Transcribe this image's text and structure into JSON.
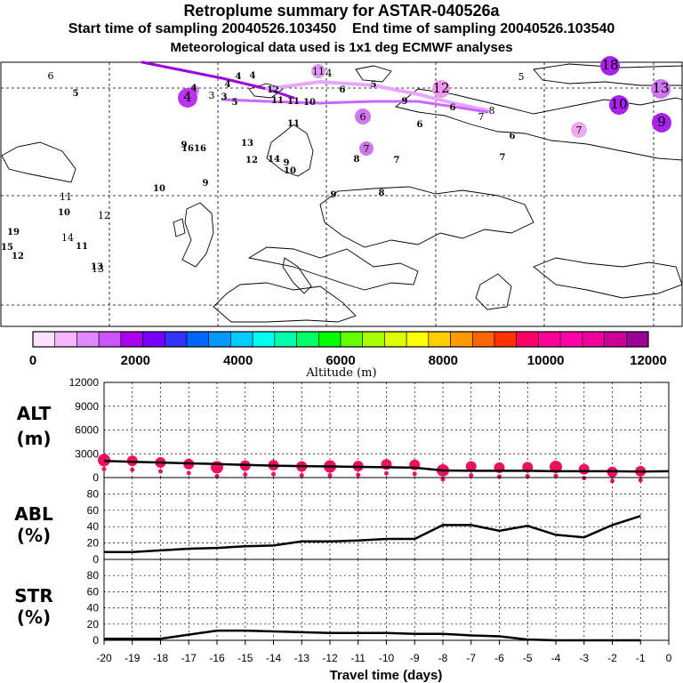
{
  "header": {
    "title": "Retroplume summary for ASTAR-040526a",
    "start_label": "Start time of sampling 20040526.103450",
    "end_label": "End time of sampling 20040526.103540",
    "met_label": "Meteorological data used is 1x1 deg ECMWF analyses"
  },
  "chart_data": [
    {
      "type": "map",
      "title": "Retroplume map",
      "cluster_labels": [
        {
          "label": "6",
          "color": "#ffffff"
        },
        {
          "label": "4",
          "color": "#cc88ee"
        },
        {
          "label": "3",
          "color": "#ffffff"
        },
        {
          "label": "11",
          "color": "#dd99ee"
        },
        {
          "label": "4",
          "color": "#ffffff"
        },
        {
          "label": "5",
          "color": "#ffffff"
        },
        {
          "label": "12",
          "color": "#ee99ee"
        },
        {
          "label": "18",
          "color": "#aa22ee"
        },
        {
          "label": "13",
          "color": "#cc77ee"
        },
        {
          "label": "10",
          "color": "#aa22ee"
        },
        {
          "label": "9",
          "color": "#aa22ee"
        },
        {
          "label": "8",
          "color": "#ffffff"
        },
        {
          "label": "7",
          "color": "#ffffff"
        },
        {
          "label": "6",
          "color": "#cc77ee"
        },
        {
          "label": "7",
          "color": "#eeaaee"
        },
        {
          "label": "4",
          "color": "#bb33ee"
        },
        {
          "label": "7",
          "color": "#cc77ee"
        },
        {
          "label": "11",
          "color": "#ffffff"
        },
        {
          "label": "12",
          "color": "#ffffff"
        },
        {
          "label": "13",
          "color": "#ffffff"
        },
        {
          "label": "14",
          "color": "#ffffff"
        }
      ]
    },
    {
      "type": "colorbar",
      "xlabel": "Altitude (m)",
      "tick_labels": [
        "0",
        "2000",
        "4000",
        "6000",
        "8000",
        "10000",
        "12000"
      ],
      "range": [
        0,
        12000
      ],
      "colors": [
        "#ffe0ff",
        "#f3b8ff",
        "#e089ff",
        "#cc55ff",
        "#aa00ee",
        "#7700ff",
        "#3333ff",
        "#0066ff",
        "#0099ff",
        "#00ccff",
        "#00ffee",
        "#00ffaa",
        "#00ff66",
        "#00ff00",
        "#66ff00",
        "#aaff00",
        "#ddff00",
        "#ffff00",
        "#ffcc00",
        "#ff9900",
        "#ff6600",
        "#ff3300",
        "#ff0066",
        "#ff0099",
        "#ff00aa",
        "#ee0099",
        "#cc0099",
        "#990099"
      ]
    },
    {
      "type": "scatter+line",
      "ylabel": "ALT",
      "yunit": "(m)",
      "ylim": [
        0,
        12000
      ],
      "yticks": [
        "0",
        "3000",
        "6000",
        "9000",
        "12000"
      ],
      "x": [
        -20,
        -19,
        -18,
        -17,
        -16,
        -15,
        -14,
        -13,
        -12,
        -11,
        -10,
        -9,
        -8,
        -7,
        -6,
        -5,
        -4,
        -3,
        -2,
        -1,
        0
      ],
      "line": [
        2100,
        2000,
        1900,
        1800,
        1700,
        1600,
        1500,
        1450,
        1400,
        1350,
        1300,
        1250,
        900,
        850,
        850,
        850,
        800,
        800,
        800,
        750,
        800
      ],
      "points": [
        2200,
        2100,
        1900,
        1700,
        1300,
        1500,
        1550,
        1400,
        1400,
        1450,
        1650,
        1600,
        900,
        1400,
        1250,
        1300,
        1350,
        1050,
        700,
        800,
        null
      ]
    },
    {
      "type": "line",
      "ylabel": "ABL",
      "yunit": "(%)",
      "ylim": [
        0,
        100
      ],
      "yticks": [
        "0",
        "20",
        "40",
        "60",
        "80"
      ],
      "x": [
        -20,
        -19,
        -18,
        -17,
        -16,
        -15,
        -14,
        -13,
        -12,
        -11,
        -10,
        -9,
        -8,
        -7,
        -6,
        -5,
        -4,
        -3,
        -2,
        -1
      ],
      "values": [
        9,
        9,
        11,
        13,
        14,
        16,
        17,
        22,
        22,
        23,
        25,
        25,
        42,
        42,
        35,
        41,
        30,
        27,
        42,
        53
      ]
    },
    {
      "type": "line",
      "ylabel": "STR",
      "yunit": "(%)",
      "ylim": [
        0,
        100
      ],
      "yticks": [
        "0",
        "20",
        "40",
        "60",
        "80"
      ],
      "x": [
        -20,
        -19,
        -18,
        -17,
        -16,
        -15,
        -14,
        -13,
        -12,
        -11,
        -10,
        -9,
        -8,
        -7,
        -6,
        -5,
        -4,
        -3,
        -2,
        -1
      ],
      "values": [
        2,
        2,
        2,
        7,
        12,
        12,
        11,
        10,
        9,
        9,
        9,
        8,
        8,
        6,
        5,
        1,
        0,
        0,
        0,
        0
      ],
      "xlabel": "Travel time (days)",
      "xticks": [
        "-20",
        "-19",
        "-18",
        "-17",
        "-16",
        "-15",
        "-14",
        "-13",
        "-12",
        "-11",
        "-10",
        "-9",
        "-8",
        "-7",
        "-6",
        "-5",
        "-4",
        "-3",
        "-2",
        "-1",
        "0"
      ]
    }
  ]
}
